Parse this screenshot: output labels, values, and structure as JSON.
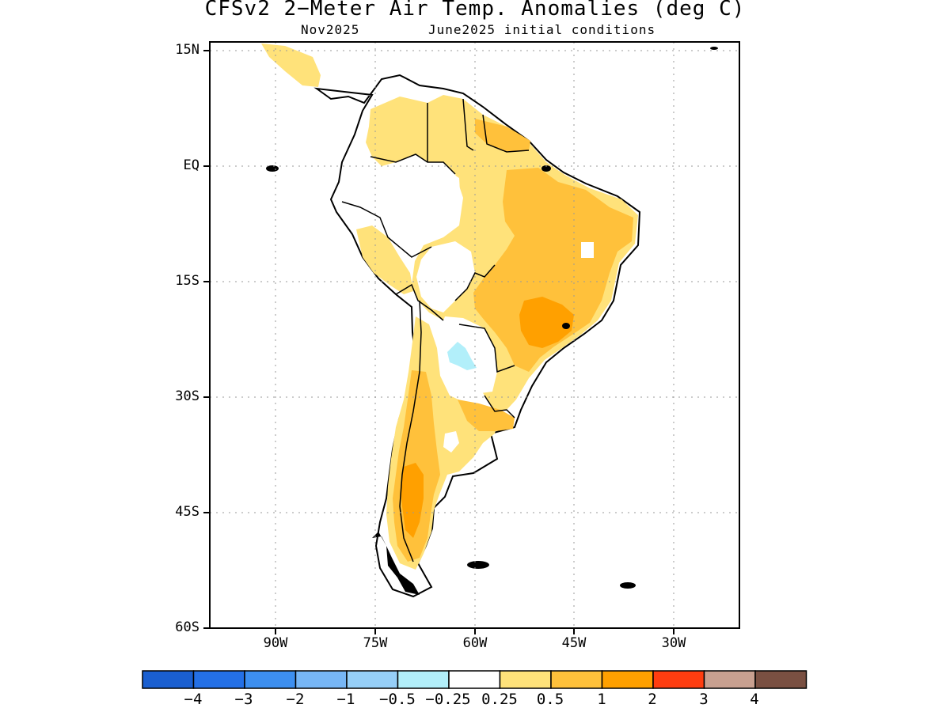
{
  "title": "CFSv2 2-Meter Air Temp. Anomalies (deg C)",
  "subtitle_left": "Nov2025",
  "subtitle_right": "June2025 initial conditions",
  "map": {
    "region": "South America",
    "variable": "2-meter air temperature anomaly",
    "units": "deg C",
    "lon_range": [
      -98,
      -24
    ],
    "lat_range": [
      -60,
      16
    ],
    "gridlines": "dotted",
    "lat_labels": [
      "15N",
      "EQ",
      "15S",
      "30S",
      "45S",
      "60S"
    ],
    "lon_labels": [
      "90W",
      "75W",
      "60W",
      "45W",
      "30W"
    ]
  },
  "colorbar": {
    "colors": [
      "#1a5fd0",
      "#2470e6",
      "#3d8ff0",
      "#77b6f5",
      "#96cff8",
      "#b2effa",
      "#ffffff",
      "#ffe27a",
      "#ffc13b",
      "#ffa000",
      "#ff3d10",
      "#c8a090",
      "#7a5042"
    ],
    "labels": [
      "-4",
      "-3",
      "-2",
      "-1",
      "-0.5",
      "-0.25",
      "0.25",
      "0.5",
      "1",
      "2",
      "3",
      "4"
    ]
  },
  "anomaly_colors": {
    "neutral": "#ffffff",
    "weak_warm": "#ffe27a",
    "moderate_warm": "#ffc13b",
    "strong_warm": "#ffa000",
    "weak_cool": "#b2effa"
  }
}
